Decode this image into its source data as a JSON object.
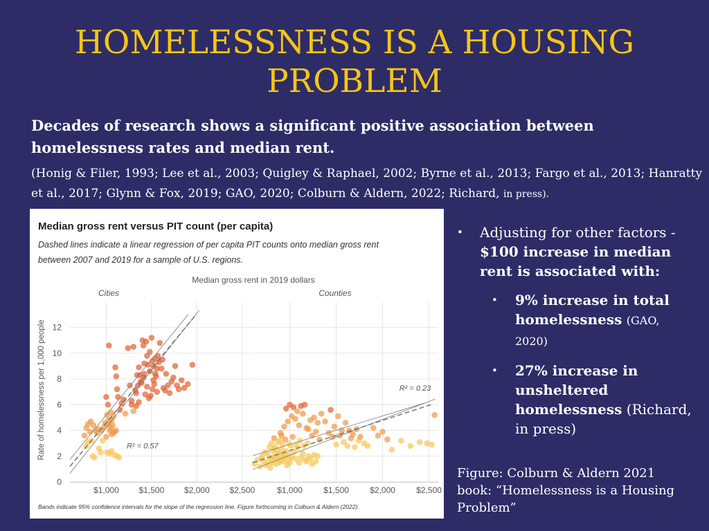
{
  "slide": {
    "title": "HOMELESSNESS IS A HOUSING PROBLEM",
    "intro": "Decades of research shows a significant positive association between homelessness rates and median rent.",
    "citation_main": "(Honig & Filer, 1993; Lee et al., 2003; Quigley & Raphael, 2002; Byrne et al., 2013; Fargo et al., 2013; Hanratty et al., 2017; Glynn & Fox, 2019; GAO, 2020; Colburn & Aldern, 2022; Richard,",
    "citation_small": "in press).",
    "bullet1_normal": "Adjusting for other factors - ",
    "bullet1_bold": "$100 increase in median rent is associated with:",
    "bullet2_bold": "9% increase in total homelessness",
    "bullet2_cite": "(GAO, 2020)",
    "bullet3_bold": "27% increase in unsheltered homelessness",
    "bullet3_cite": "(Richard, in press)",
    "caption": "Figure: Colburn & Aldern 2021 book: “Homelessness is a Housing Problem”",
    "bullet_symbol": "•"
  },
  "chart": {
    "title": "Median gross rent versus PIT count (per capita)",
    "subtitle_line1": "Dashed lines indicate a linear regression of per capita PIT counts onto median gross rent",
    "subtitle_line2": "between 2007 and 2019 for a sample of U.S. regions.",
    "xlabel": "Median gross rent in 2019 dollars",
    "ylabel": "Rate of homelessness per 1,000 people",
    "footnote": "Bands indicate 95% confidence intervals for the slope of the regression line. Figure forthcoming in Colburn & Aldern (2022)."
  },
  "chart_data": {
    "type": "scatter",
    "y_ticks": [
      "12",
      "10",
      "8",
      "6",
      "4",
      "2",
      "0"
    ],
    "ylim": [
      0,
      13
    ],
    "xlim": [
      600,
      2600
    ],
    "x_ticks": [
      "$1,000",
      "$1,500",
      "$2,000",
      "$2,500"
    ],
    "colors": {
      "low": "#f6c85a",
      "high": "#e06434",
      "grid": "#e6e6e6",
      "line": "#7a7a7a"
    },
    "panels": [
      {
        "name": "Cities",
        "r2_label": "R² = 0.57",
        "line": {
          "x": [
            600,
            1980
          ],
          "y": [
            1.2,
            12.9
          ]
        },
        "points": [
          [
            760,
            3.6
          ],
          [
            780,
            4.2
          ],
          [
            800,
            4.5
          ],
          [
            820,
            3.9
          ],
          [
            840,
            3.2
          ],
          [
            850,
            2.0
          ],
          [
            870,
            1.9
          ],
          [
            900,
            3.8
          ],
          [
            920,
            2.6
          ],
          [
            940,
            2.3
          ],
          [
            780,
            2.8
          ],
          [
            800,
            3.1
          ],
          [
            830,
            4.7
          ],
          [
            860,
            4.4
          ],
          [
            880,
            4.0
          ],
          [
            920,
            4.1
          ],
          [
            950,
            4.0
          ],
          [
            980,
            4.3
          ],
          [
            1000,
            3.5
          ],
          [
            1020,
            4.5
          ],
          [
            1040,
            4.0
          ],
          [
            1060,
            3.7
          ],
          [
            1080,
            3.8
          ],
          [
            960,
            3.2
          ],
          [
            990,
            4.6
          ],
          [
            1010,
            5.2
          ],
          [
            1030,
            4.8
          ],
          [
            1050,
            4.2
          ],
          [
            1070,
            4.4
          ],
          [
            1090,
            3.9
          ],
          [
            1000,
            6.6
          ],
          [
            1020,
            6.0
          ],
          [
            1050,
            5.4
          ],
          [
            1060,
            4.8
          ],
          [
            1080,
            5.1
          ],
          [
            1110,
            4.0
          ],
          [
            1010,
            2.3
          ],
          [
            1040,
            2.2
          ],
          [
            1060,
            2.4
          ],
          [
            1090,
            2.1
          ],
          [
            1120,
            2.0
          ],
          [
            1140,
            1.9
          ],
          [
            1030,
            10.6
          ],
          [
            1100,
            8.9
          ],
          [
            1110,
            8.2
          ],
          [
            1120,
            7.2
          ],
          [
            1130,
            6.6
          ],
          [
            1150,
            5.6
          ],
          [
            1170,
            6.1
          ],
          [
            1190,
            6.4
          ],
          [
            1210,
            5.3
          ],
          [
            1240,
            10.4
          ],
          [
            1260,
            7.5
          ],
          [
            1280,
            6.3
          ],
          [
            1300,
            10.5
          ],
          [
            1320,
            7.1
          ],
          [
            1340,
            8.3
          ],
          [
            1360,
            8.9
          ],
          [
            1380,
            7.8
          ],
          [
            1400,
            11.0
          ],
          [
            1410,
            10.6
          ],
          [
            1420,
            8.4
          ],
          [
            1440,
            10.9
          ],
          [
            1460,
            9.1
          ],
          [
            1480,
            8.6
          ],
          [
            1500,
            11.2
          ],
          [
            1510,
            9.4
          ],
          [
            1520,
            7.9
          ],
          [
            1540,
            9.6
          ],
          [
            1560,
            7.0
          ],
          [
            1280,
            6.0
          ],
          [
            1300,
            5.5
          ],
          [
            1330,
            5.9
          ],
          [
            1360,
            6.2
          ],
          [
            1390,
            7.7
          ],
          [
            1410,
            8.1
          ],
          [
            1430,
            6.8
          ],
          [
            1450,
            7.4
          ],
          [
            1470,
            6.5
          ],
          [
            1490,
            6.7
          ],
          [
            1510,
            7.2
          ],
          [
            1530,
            7.6
          ],
          [
            1550,
            8.2
          ],
          [
            1570,
            9.8
          ],
          [
            1590,
            10.8
          ],
          [
            1610,
            8.8
          ],
          [
            1630,
            7.3
          ],
          [
            1650,
            7.1
          ],
          [
            1660,
            8.4
          ],
          [
            1680,
            7.5
          ],
          [
            1700,
            6.9
          ],
          [
            1720,
            7.8
          ],
          [
            1740,
            8.1
          ],
          [
            1760,
            9.0
          ],
          [
            1780,
            7.5
          ],
          [
            1800,
            7.2
          ],
          [
            1830,
            7.9
          ],
          [
            1860,
            7.3
          ],
          [
            1900,
            7.6
          ],
          [
            1950,
            9.1
          ],
          [
            1330,
            6.9
          ],
          [
            1350,
            7.5
          ],
          [
            1370,
            8.3
          ],
          [
            1420,
            9.2
          ],
          [
            1450,
            9.8
          ],
          [
            1480,
            10.1
          ],
          [
            1520,
            9.0
          ],
          [
            1540,
            8.4
          ],
          [
            1560,
            8.8
          ],
          [
            1580,
            9.3
          ],
          [
            1620,
            9.5
          ]
        ]
      },
      {
        "name": "Counties",
        "r2_label": "R² = 0.23",
        "line": {
          "x": [
            600,
            2520
          ],
          "y": [
            1.5,
            6.0
          ]
        },
        "points": [
          [
            620,
            1.4
          ],
          [
            650,
            1.7
          ],
          [
            680,
            1.2
          ],
          [
            700,
            2.0
          ],
          [
            720,
            1.6
          ],
          [
            740,
            1.3
          ],
          [
            760,
            2.2
          ],
          [
            780,
            1.9
          ],
          [
            800,
            1.5
          ],
          [
            820,
            2.4
          ],
          [
            840,
            2.7
          ],
          [
            860,
            1.8
          ],
          [
            880,
            2.1
          ],
          [
            900,
            1.6
          ],
          [
            920,
            2.9
          ],
          [
            700,
            1.8
          ],
          [
            730,
            2.3
          ],
          [
            760,
            1.5
          ],
          [
            790,
            1.1
          ],
          [
            810,
            1.9
          ],
          [
            830,
            2.6
          ],
          [
            850,
            1.4
          ],
          [
            870,
            2.2
          ],
          [
            890,
            3.2
          ],
          [
            910,
            2.5
          ],
          [
            930,
            1.9
          ],
          [
            950,
            2.0
          ],
          [
            970,
            1.3
          ],
          [
            990,
            1.7
          ],
          [
            1010,
            2.8
          ],
          [
            780,
            2.7
          ],
          [
            800,
            3.0
          ],
          [
            820,
            1.7
          ],
          [
            840,
            2.0
          ],
          [
            860,
            2.5
          ],
          [
            880,
            1.5
          ],
          [
            900,
            1.8
          ],
          [
            920,
            2.2
          ],
          [
            940,
            1.6
          ],
          [
            960,
            2.4
          ],
          [
            980,
            2.1
          ],
          [
            1000,
            1.5
          ],
          [
            1020,
            1.9
          ],
          [
            1040,
            2.3
          ],
          [
            1060,
            1.8
          ],
          [
            1080,
            2.6
          ],
          [
            1100,
            1.5
          ],
          [
            1120,
            1.9
          ],
          [
            1140,
            2.2
          ],
          [
            1160,
            1.7
          ],
          [
            1180,
            1.6
          ],
          [
            1200,
            2.0
          ],
          [
            1220,
            1.8
          ],
          [
            1240,
            1.4
          ],
          [
            1260,
            2.1
          ],
          [
            1280,
            1.6
          ],
          [
            1300,
            2.0
          ],
          [
            830,
            3.4
          ],
          [
            870,
            3.1
          ],
          [
            910,
            3.6
          ],
          [
            950,
            3.3
          ],
          [
            990,
            3.0
          ],
          [
            1030,
            3.5
          ],
          [
            1070,
            2.9
          ],
          [
            1110,
            3.2
          ],
          [
            1150,
            2.8
          ],
          [
            1190,
            3.0
          ],
          [
            900,
            3.8
          ],
          [
            940,
            4.3
          ],
          [
            980,
            4.7
          ],
          [
            1020,
            5.1
          ],
          [
            1060,
            4.9
          ],
          [
            1100,
            4.4
          ],
          [
            1140,
            5.3
          ],
          [
            1180,
            4.2
          ],
          [
            1220,
            4.8
          ],
          [
            1260,
            5.0
          ],
          [
            1300,
            4.6
          ],
          [
            960,
            5.7
          ],
          [
            1000,
            6.0
          ],
          [
            1040,
            5.8
          ],
          [
            1080,
            5.5
          ],
          [
            1120,
            5.9
          ],
          [
            1160,
            6.0
          ],
          [
            1200,
            4.1
          ],
          [
            1240,
            3.6
          ],
          [
            1280,
            3.9
          ],
          [
            1320,
            3.3
          ],
          [
            1340,
            5.3
          ],
          [
            1380,
            4.7
          ],
          [
            1420,
            3.8
          ],
          [
            1460,
            3.5
          ],
          [
            1500,
            2.9
          ],
          [
            1540,
            3.6
          ],
          [
            1580,
            3.1
          ],
          [
            1620,
            2.8
          ],
          [
            1660,
            3.4
          ],
          [
            1700,
            2.7
          ],
          [
            1740,
            3.2
          ],
          [
            1440,
            5.6
          ],
          [
            1480,
            4.3
          ],
          [
            1520,
            5.1
          ],
          [
            1560,
            4.0
          ],
          [
            1600,
            4.6
          ],
          [
            1640,
            4.0
          ],
          [
            1680,
            3.7
          ],
          [
            1720,
            4.1
          ],
          [
            1760,
            3.5
          ],
          [
            1800,
            3.0
          ],
          [
            1840,
            2.8
          ],
          [
            1900,
            4.2
          ],
          [
            1950,
            3.6
          ],
          [
            2000,
            3.9
          ],
          [
            2050,
            3.3
          ],
          [
            2100,
            2.5
          ],
          [
            2200,
            3.2
          ],
          [
            2300,
            2.8
          ],
          [
            2400,
            3.1
          ],
          [
            2480,
            3.0
          ],
          [
            2530,
            2.9
          ],
          [
            2560,
            5.2
          ]
        ]
      }
    ]
  }
}
